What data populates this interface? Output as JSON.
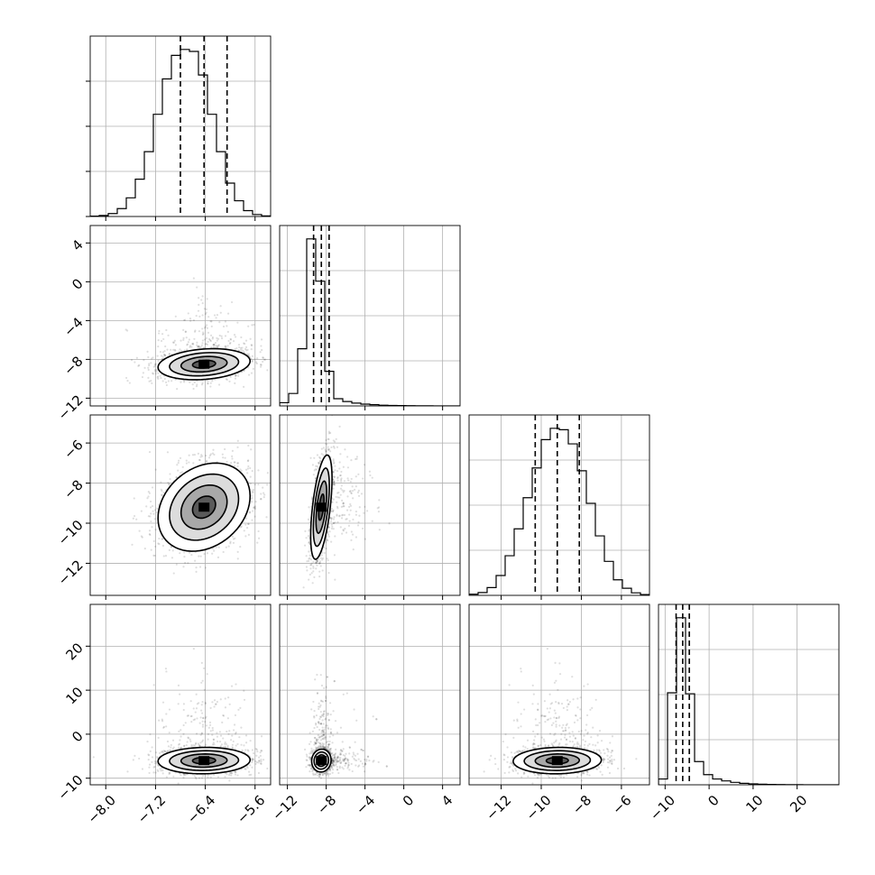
{
  "chart_data": {
    "type": "corner",
    "title": "",
    "n_parameters": 4,
    "parameter_labels": [
      "",
      "",
      "",
      ""
    ],
    "grid": true,
    "parameters": [
      {
        "index": 0,
        "range": [
          -8.25,
          -5.35
        ],
        "ticks": [
          -8.0,
          -7.2,
          -6.4,
          -5.6
        ],
        "tick_labels": [
          "−8.0",
          "−7.2",
          "−6.4",
          "−5.6"
        ],
        "quantile_lines": [
          -6.8,
          -6.42,
          -6.05
        ],
        "median": -6.42,
        "spread": 0.37
      },
      {
        "index": 1,
        "range": [
          -12.8,
          5.8
        ],
        "ticks": [
          -12,
          -8,
          -4,
          0,
          4
        ],
        "tick_labels": [
          "−12",
          "−8",
          "−4",
          "0",
          "4"
        ],
        "quantile_lines": [
          -9.3,
          -8.5,
          -7.7
        ],
        "median": -8.5,
        "spread": 0.8
      },
      {
        "index": 2,
        "range": [
          -13.6,
          -4.6
        ],
        "ticks": [
          -12,
          -10,
          -8,
          -6
        ],
        "tick_labels": [
          "−12",
          "−10",
          "−8",
          "−6"
        ],
        "quantile_lines": [
          -10.3,
          -9.2,
          -8.1
        ],
        "median": -9.2,
        "spread": 1.1
      },
      {
        "index": 3,
        "range": [
          -11.5,
          29.5
        ],
        "ticks": [
          -10,
          0,
          10,
          20
        ],
        "tick_labels": [
          "−10",
          "0",
          "10",
          "20"
        ],
        "quantile_lines": [
          -7.5,
          -6.0,
          -4.5
        ],
        "median": -6.0,
        "spread": 1.5
      }
    ],
    "histograms": [
      {
        "parameter": 0,
        "bin_edges": [
          -8.25,
          -8.105,
          -7.96,
          -7.815,
          -7.67,
          -7.525,
          -7.38,
          -7.235,
          -7.09,
          -6.945,
          -6.8,
          -6.655,
          -6.51,
          -6.365,
          -6.22,
          -6.075,
          -5.93,
          -5.785,
          -5.64,
          -5.495,
          -5.35
        ],
        "counts": [
          2,
          5,
          15,
          40,
          95,
          190,
          330,
          520,
          700,
          820,
          850,
          840,
          720,
          520,
          330,
          170,
          80,
          30,
          10,
          3
        ]
      },
      {
        "parameter": 1,
        "bin_edges": [
          -12.8,
          -11.87,
          -10.94,
          -10.01,
          -9.08,
          -8.15,
          -7.22,
          -6.29,
          -5.36,
          -4.43,
          -3.5,
          -2.57,
          -1.64,
          -0.71,
          0.22,
          1.15,
          2.08,
          3.01,
          3.94,
          4.87,
          5.8
        ],
        "counts": [
          80,
          310,
          1420,
          4150,
          3100,
          860,
          180,
          110,
          70,
          45,
          30,
          18,
          12,
          8,
          5,
          3,
          2,
          1,
          1,
          0
        ]
      },
      {
        "parameter": 2,
        "bin_edges": [
          -13.6,
          -13.15,
          -12.7,
          -12.25,
          -11.8,
          -11.35,
          -10.9,
          -10.45,
          -10.0,
          -9.55,
          -9.1,
          -8.65,
          -8.2,
          -7.75,
          -7.3,
          -6.85,
          -6.4,
          -5.95,
          -5.5,
          -5.05,
          -4.6
        ],
        "counts": [
          8,
          20,
          55,
          140,
          280,
          470,
          690,
          900,
          1100,
          1180,
          1170,
          1070,
          880,
          650,
          420,
          240,
          110,
          50,
          18,
          6
        ]
      },
      {
        "parameter": 3,
        "bin_edges": [
          -11.5,
          -9.45,
          -7.4,
          -5.35,
          -3.3,
          -1.25,
          0.8,
          2.85,
          4.9,
          6.95,
          9.0,
          11.05,
          13.1,
          15.15,
          17.2,
          19.25,
          21.3,
          23.35,
          25.4,
          27.45,
          29.5
        ],
        "counts": [
          120,
          1900,
          3450,
          1880,
          480,
          210,
          120,
          80,
          50,
          30,
          20,
          12,
          8,
          5,
          3,
          2,
          1,
          1,
          0,
          0
        ]
      }
    ],
    "pairs": [
      {
        "x_param": 0,
        "y_param": 1,
        "center": [
          -6.42,
          -8.5
        ],
        "sigma": [
          0.37,
          0.8
        ],
        "correlation": 0.2,
        "contour_levels": [
          0.5,
          1.0,
          1.5,
          2.0
        ]
      },
      {
        "x_param": 0,
        "y_param": 2,
        "center": [
          -6.42,
          -9.2
        ],
        "sigma": [
          0.37,
          1.1
        ],
        "correlation": 0.25,
        "contour_levels": [
          0.5,
          1.0,
          1.5,
          2.0
        ]
      },
      {
        "x_param": 1,
        "y_param": 2,
        "center": [
          -8.5,
          -9.2
        ],
        "sigma": [
          0.55,
          1.3
        ],
        "correlation": 0.55,
        "contour_levels": [
          0.5,
          1.0,
          1.5,
          2.0
        ]
      },
      {
        "x_param": 0,
        "y_param": 3,
        "center": [
          -6.42,
          -6.0
        ],
        "sigma": [
          0.37,
          1.5
        ],
        "correlation": 0.05,
        "contour_levels": [
          0.5,
          1.0,
          1.5,
          2.0
        ]
      },
      {
        "x_param": 1,
        "y_param": 3,
        "center": [
          -8.5,
          -6.0
        ],
        "sigma": [
          0.5,
          1.3
        ],
        "correlation": 0.05,
        "contour_levels": [
          0.5,
          1.0,
          1.5,
          2.0
        ]
      },
      {
        "x_param": 2,
        "y_param": 3,
        "center": [
          -9.2,
          -6.0
        ],
        "sigma": [
          1.1,
          1.5
        ],
        "correlation": 0.05,
        "contour_levels": [
          0.5,
          1.0,
          1.5,
          2.0
        ]
      }
    ]
  }
}
